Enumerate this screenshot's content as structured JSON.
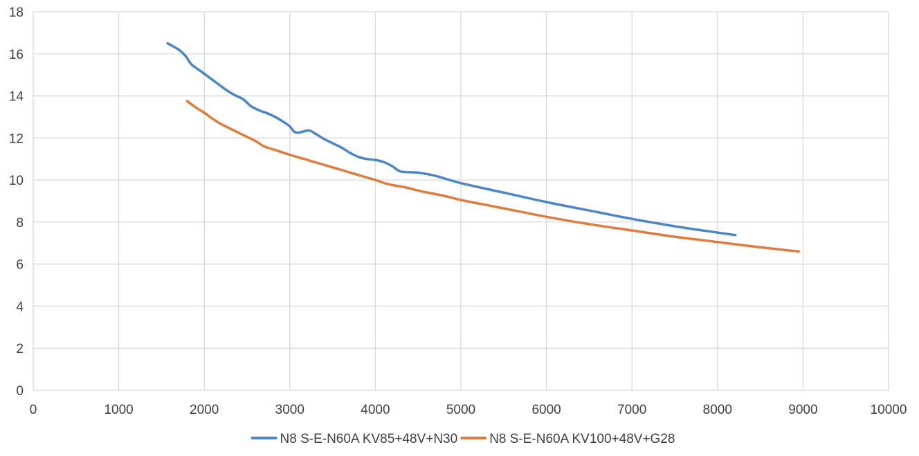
{
  "chart_data": {
    "type": "line",
    "title": "",
    "xlabel": "",
    "ylabel": "",
    "xlim": [
      0,
      10000
    ],
    "ylim": [
      0,
      18
    ],
    "x_ticks": [
      0,
      1000,
      2000,
      3000,
      4000,
      5000,
      6000,
      7000,
      8000,
      9000,
      10000
    ],
    "y_ticks": [
      0,
      2,
      4,
      6,
      8,
      10,
      12,
      14,
      16,
      18
    ],
    "grid": true,
    "legend_position": "bottom",
    "series": [
      {
        "name": "N8 S-E-N60A KV85+48V+N30",
        "color": "#4a86c5",
        "points": [
          [
            1570,
            16.5
          ],
          [
            1700,
            16.2
          ],
          [
            1780,
            15.9
          ],
          [
            1850,
            15.5
          ],
          [
            1950,
            15.2
          ],
          [
            2050,
            14.9
          ],
          [
            2150,
            14.6
          ],
          [
            2250,
            14.3
          ],
          [
            2350,
            14.05
          ],
          [
            2450,
            13.85
          ],
          [
            2550,
            13.5
          ],
          [
            2650,
            13.3
          ],
          [
            2750,
            13.15
          ],
          [
            2850,
            12.95
          ],
          [
            2950,
            12.7
          ],
          [
            3000,
            12.55
          ],
          [
            3050,
            12.3
          ],
          [
            3100,
            12.25
          ],
          [
            3150,
            12.3
          ],
          [
            3230,
            12.35
          ],
          [
            3300,
            12.2
          ],
          [
            3400,
            11.95
          ],
          [
            3500,
            11.75
          ],
          [
            3600,
            11.55
          ],
          [
            3700,
            11.3
          ],
          [
            3800,
            11.1
          ],
          [
            3900,
            11.0
          ],
          [
            4000,
            10.95
          ],
          [
            4100,
            10.85
          ],
          [
            4200,
            10.65
          ],
          [
            4300,
            10.4
          ],
          [
            4500,
            10.35
          ],
          [
            4700,
            10.2
          ],
          [
            5000,
            9.85
          ],
          [
            5500,
            9.4
          ],
          [
            6000,
            8.95
          ],
          [
            6500,
            8.55
          ],
          [
            7000,
            8.15
          ],
          [
            7500,
            7.8
          ],
          [
            8000,
            7.5
          ],
          [
            8210,
            7.38
          ]
        ]
      },
      {
        "name": "N8 S-E-N60A KV100+48V+G28",
        "color": "#e27a3c",
        "points": [
          [
            1800,
            13.75
          ],
          [
            1900,
            13.45
          ],
          [
            2000,
            13.2
          ],
          [
            2100,
            12.9
          ],
          [
            2200,
            12.65
          ],
          [
            2300,
            12.45
          ],
          [
            2400,
            12.25
          ],
          [
            2500,
            12.05
          ],
          [
            2600,
            11.85
          ],
          [
            2700,
            11.6
          ],
          [
            2850,
            11.4
          ],
          [
            3000,
            11.2
          ],
          [
            3250,
            10.9
          ],
          [
            3500,
            10.6
          ],
          [
            3750,
            10.3
          ],
          [
            4000,
            10.0
          ],
          [
            4150,
            9.8
          ],
          [
            4350,
            9.65
          ],
          [
            4550,
            9.45
          ],
          [
            4800,
            9.25
          ],
          [
            5000,
            9.05
          ],
          [
            5250,
            8.85
          ],
          [
            5500,
            8.65
          ],
          [
            5750,
            8.45
          ],
          [
            6000,
            8.25
          ],
          [
            6500,
            7.9
          ],
          [
            7000,
            7.6
          ],
          [
            7500,
            7.3
          ],
          [
            8000,
            7.05
          ],
          [
            8500,
            6.8
          ],
          [
            8950,
            6.6
          ]
        ]
      }
    ]
  }
}
